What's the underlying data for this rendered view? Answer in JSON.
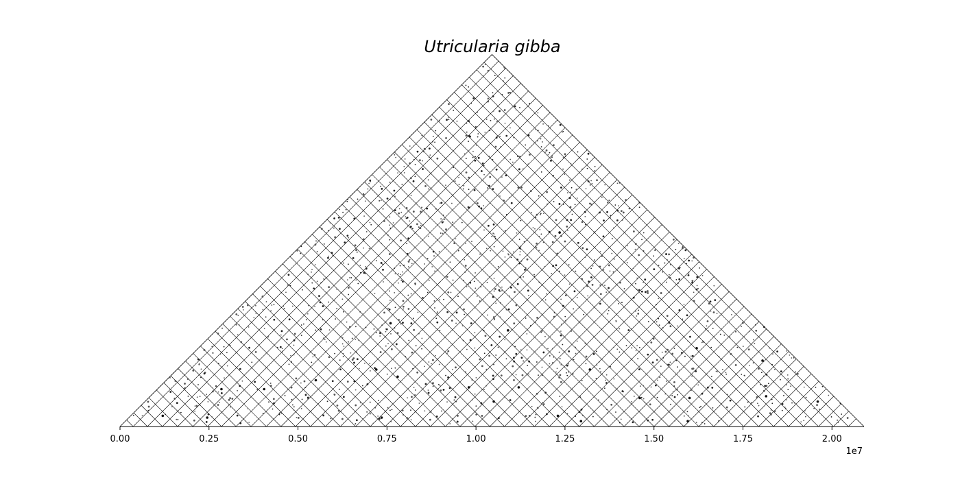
{
  "chart_data": {
    "type": "scatter",
    "title": "Utricularia gibba",
    "xlabel": "",
    "ylabel": "",
    "xlim": [
      0,
      20900000
    ],
    "x_offset_label": "1e7",
    "x_ticks": [
      0,
      2500000,
      5000000,
      7500000,
      10000000,
      12500000,
      15000000,
      17500000,
      20000000
    ],
    "x_tick_labels": [
      "0.00",
      "0.25",
      "0.50",
      "0.75",
      "1.00",
      "1.25",
      "1.50",
      "1.75",
      "2.00"
    ],
    "grid": true,
    "scaffold_boundaries": [
      370000,
      770000,
      1190000,
      1620000,
      2050000,
      2460000,
      2850000,
      3260000,
      3680000,
      4110000,
      4520000,
      4930000,
      5350000,
      5770000,
      6190000,
      6620000,
      7030000,
      7450000,
      7880000,
      8300000,
      8720000,
      9140000,
      9550000,
      9970000,
      10390000,
      10800000,
      11220000,
      11640000,
      12060000,
      12480000,
      12900000,
      13320000,
      13740000,
      14160000,
      14580000,
      15000000,
      15420000,
      15840000,
      16260000,
      16680000,
      17100000,
      17520000,
      17940000,
      18360000,
      18780000,
      19200000,
      19620000,
      20040000,
      20460000
    ],
    "dot_pairs": [
      [
        9800000,
        11200000
      ],
      [
        8700000,
        10900000
      ],
      [
        4200000,
        6800000
      ],
      [
        15200000,
        16800000
      ],
      [
        12800000,
        13100000
      ],
      [
        1800000,
        3900000
      ],
      [
        3000000,
        5100000
      ],
      [
        6400000,
        9200000
      ],
      [
        11600000,
        14800000
      ],
      [
        17300000,
        19000000
      ],
      [
        2200000,
        2700000
      ],
      [
        7100000,
        7600000
      ],
      [
        13800000,
        15400000
      ],
      [
        10100000,
        12300000
      ],
      [
        5600000,
        8800000
      ],
      [
        16200000,
        19900000
      ],
      [
        900000,
        1500000
      ],
      [
        14000000,
        18400000
      ],
      [
        8200000,
        13600000
      ],
      [
        12000000,
        12600000
      ],
      [
        15800000,
        16100000
      ],
      [
        18900000,
        20300000
      ],
      [
        4700000,
        10500000
      ],
      [
        6900000,
        17800000
      ]
    ]
  }
}
